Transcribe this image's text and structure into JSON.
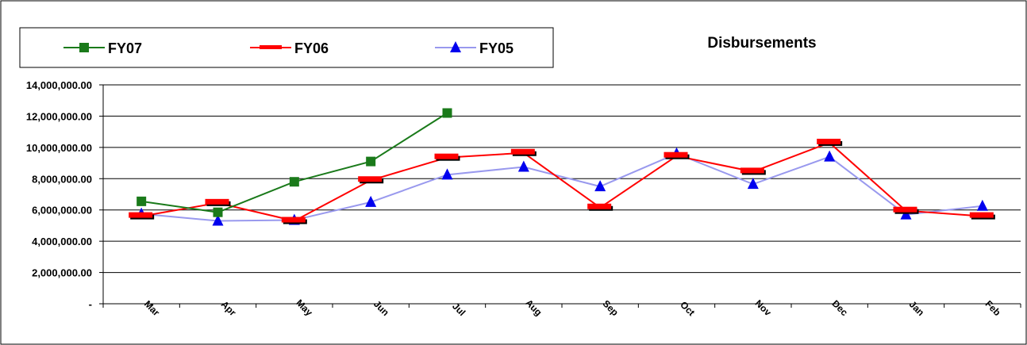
{
  "chart_data": {
    "type": "line",
    "title": "Disbursements",
    "categories": [
      "Mar",
      "Apr",
      "May",
      "Jun",
      "Jul",
      "Aug",
      "Sep",
      "Oct",
      "Nov",
      "Dec",
      "Jan",
      "Feb"
    ],
    "y_tick_labels": [
      "-",
      "2,000,000.00",
      "4,000,000.00",
      "6,000,000.00",
      "8,000,000.00",
      "10,000,000.00",
      "12,000,000.00",
      "14,000,000.00"
    ],
    "ylim": [
      0,
      14000000
    ],
    "grid": true,
    "legend_position": "top-left",
    "series": [
      {
        "name": "FY07",
        "color": "#1a7a1a",
        "marker": "square",
        "values": [
          6550000,
          5850000,
          7800000,
          9100000,
          12200000,
          null,
          null,
          null,
          null,
          null,
          null,
          null
        ]
      },
      {
        "name": "FY06",
        "color": "#ff0000",
        "marker": "dash",
        "values": [
          5600000,
          6450000,
          5300000,
          7900000,
          9350000,
          9650000,
          6150000,
          9450000,
          8450000,
          10300000,
          5950000,
          5600000
        ]
      },
      {
        "name": "FY05",
        "color": "#9999ee",
        "marker": "triangle",
        "values": [
          5750000,
          5300000,
          5350000,
          6500000,
          8250000,
          8750000,
          7500000,
          9600000,
          7650000,
          9400000,
          5700000,
          6250000
        ]
      }
    ]
  }
}
